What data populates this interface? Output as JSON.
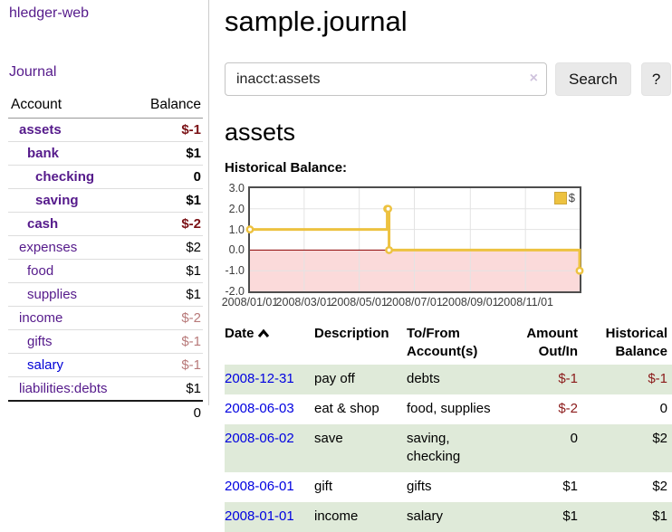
{
  "app": {
    "brand": "hledger-web",
    "nav_journal": "Journal"
  },
  "colors": {
    "link_purple": "#551a8b",
    "link_blue": "#0000d6",
    "negative_dark": "#7b1216",
    "negative_muted": "#b87a7a",
    "table_negative": "#8b1a1a",
    "row_green": "#dfead9",
    "chart_line": "#edc240",
    "chart_negative_fill": "#fbdada",
    "chart_zero_line": "#8b0000",
    "chart_border": "#4d4d4d",
    "button_bg": "#e9e9e9"
  },
  "sidebar": {
    "accounts_header": {
      "account": "Account",
      "balance": "Balance"
    },
    "rows": [
      {
        "name": "assets",
        "indent": 1,
        "bold": true,
        "balance": "$-1",
        "neg": true
      },
      {
        "name": "bank",
        "indent": 2,
        "bold": true,
        "balance": "$1",
        "neg": false
      },
      {
        "name": "checking",
        "indent": 3,
        "bold": true,
        "balance": "0",
        "neg": false
      },
      {
        "name": "saving",
        "indent": 3,
        "bold": true,
        "balance": "$1",
        "neg": false
      },
      {
        "name": "cash",
        "indent": 2,
        "bold": true,
        "balance": "$-2",
        "neg": true
      },
      {
        "name": "expenses",
        "indent": 1,
        "bold": false,
        "balance": "$2",
        "neg": false
      },
      {
        "name": "food",
        "indent": 2,
        "bold": false,
        "balance": "$1",
        "neg": false
      },
      {
        "name": "supplies",
        "indent": 2,
        "bold": false,
        "balance": "$1",
        "neg": false
      },
      {
        "name": "income",
        "indent": 1,
        "bold": false,
        "balance": "$-2",
        "neg": true
      },
      {
        "name": "gifts",
        "indent": 2,
        "bold": false,
        "balance": "$-1",
        "neg": true
      },
      {
        "name": "salary",
        "indent": 2,
        "bold": false,
        "balance": "$-1",
        "neg": true,
        "link_blue": true
      },
      {
        "name": "liabilities:debts",
        "indent": 1,
        "bold": false,
        "balance": "$1",
        "neg": false
      }
    ],
    "total": "0"
  },
  "header": {
    "title": "sample.journal"
  },
  "search": {
    "value": "inacct:assets",
    "clear_icon": "×",
    "search_label": "Search",
    "help_label": "?"
  },
  "account_page": {
    "title": "assets",
    "chart_label": "Historical Balance:"
  },
  "chart_data": {
    "type": "line",
    "title": "Historical Balance",
    "steps": true,
    "xlim": [
      0,
      365
    ],
    "ylim": [
      -2,
      3
    ],
    "grid": true,
    "x_unit": "days since 2008-01-01",
    "series": [
      {
        "name": "$",
        "color": "#edc240",
        "points": [
          {
            "date": "2008-01-01",
            "day": 0,
            "value": 1
          },
          {
            "date": "2008-06-01",
            "day": 152,
            "value": 2
          },
          {
            "date": "2008-06-02",
            "day": 153,
            "value": 2
          },
          {
            "date": "2008-06-03",
            "day": 154,
            "value": 0
          },
          {
            "date": "2008-12-31",
            "day": 365,
            "value": -1
          }
        ]
      }
    ],
    "x_ticks": [
      {
        "day": 0,
        "label": "2008/01/01"
      },
      {
        "day": 60,
        "label": "2008/03/01"
      },
      {
        "day": 121,
        "label": "2008/05/01"
      },
      {
        "day": 182,
        "label": "2008/07/01"
      },
      {
        "day": 244,
        "label": "2008/09/01"
      },
      {
        "day": 305,
        "label": "2008/11/01"
      }
    ],
    "y_ticks": [
      {
        "value": 3,
        "label": "3.0"
      },
      {
        "value": 2,
        "label": "2.0"
      },
      {
        "value": 1,
        "label": "1.0"
      },
      {
        "value": 0,
        "label": "0.0"
      },
      {
        "value": -1,
        "label": "-1.0"
      },
      {
        "value": -2,
        "label": "-2.0"
      }
    ],
    "legend": {
      "label": "$",
      "swatch_color": "#edc240",
      "position": "top-right"
    }
  },
  "register": {
    "columns": {
      "date": "Date",
      "description": "Description",
      "accounts": "To/From Account(s)",
      "amount": "Amount Out/In",
      "balance": "Historical Balance"
    },
    "rows": [
      {
        "date": "2008-12-31",
        "description": "pay off",
        "accounts": "debts",
        "amount": "$-1",
        "amount_neg": true,
        "balance": "$-1",
        "balance_neg": true
      },
      {
        "date": "2008-06-03",
        "description": "eat & shop",
        "accounts": "food, supplies",
        "amount": "$-2",
        "amount_neg": true,
        "balance": "0",
        "balance_neg": false
      },
      {
        "date": "2008-06-02",
        "description": "save",
        "accounts": "saving, checking",
        "amount": "0",
        "amount_neg": false,
        "balance": "$2",
        "balance_neg": false
      },
      {
        "date": "2008-06-01",
        "description": "gift",
        "accounts": "gifts",
        "amount": "$1",
        "amount_neg": false,
        "balance": "$2",
        "balance_neg": false
      },
      {
        "date": "2008-01-01",
        "description": "income",
        "accounts": "salary",
        "amount": "$1",
        "amount_neg": false,
        "balance": "$1",
        "balance_neg": false
      }
    ]
  }
}
